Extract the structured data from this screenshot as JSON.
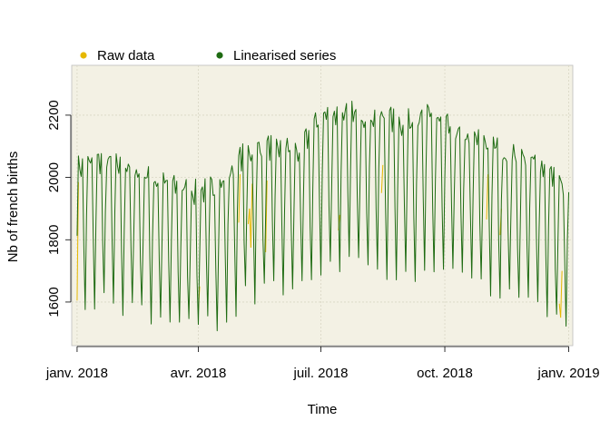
{
  "chart_data": {
    "type": "line",
    "title": "",
    "xlabel": "Time",
    "ylabel": "Nb of french births",
    "x_ticks": [
      {
        "date": "2018-01-01",
        "label": "janv. 2018"
      },
      {
        "date": "2018-04-01",
        "label": "avr. 2018"
      },
      {
        "date": "2018-07-01",
        "label": "juil. 2018"
      },
      {
        "date": "2018-10-01",
        "label": "oct. 2018"
      },
      {
        "date": "2019-01-01",
        "label": "janv. 2019"
      }
    ],
    "y_ticks": [
      1600,
      1800,
      2000,
      2200
    ],
    "xlim": [
      "2017-12-28",
      "2019-01-04"
    ],
    "ylim": [
      1460,
      2360
    ],
    "grid": true,
    "legend_position": "top",
    "colors": {
      "panel_background": "#f3f1e4",
      "grid": "#d8d6c4",
      "raw": "#e6b800",
      "linearised": "#1e6b12"
    },
    "series": [
      {
        "name": "Raw data",
        "color": "#e6b800",
        "points": [
          {
            "x": "2018-01-01",
            "y": 1605
          },
          {
            "x": "2018-01-02",
            "y": 1985
          },
          {
            "x": "2018-04-01",
            "y": 1570
          },
          {
            "x": "2018-04-02",
            "y": 1650
          },
          {
            "x": "2018-05-01",
            "y": 1855
          },
          {
            "x": "2018-05-02",
            "y": 2010
          },
          {
            "x": "2018-05-08",
            "y": 1850
          },
          {
            "x": "2018-05-09",
            "y": 1900
          },
          {
            "x": "2018-05-10",
            "y": 1775
          },
          {
            "x": "2018-05-11",
            "y": 1980
          },
          {
            "x": "2018-05-21",
            "y": 1760
          },
          {
            "x": "2018-05-22",
            "y": 1990
          },
          {
            "x": "2018-07-14",
            "y": 1830
          },
          {
            "x": "2018-07-15",
            "y": 1880
          },
          {
            "x": "2018-08-15",
            "y": 1950
          },
          {
            "x": "2018-08-16",
            "y": 2040
          },
          {
            "x": "2018-11-01",
            "y": 1865
          },
          {
            "x": "2018-11-02",
            "y": 2010
          },
          {
            "x": "2018-11-11",
            "y": 1815
          },
          {
            "x": "2018-11-12",
            "y": 1900
          },
          {
            "x": "2018-12-25",
            "y": 1595
          },
          {
            "x": "2018-12-26",
            "y": 1550
          },
          {
            "x": "2018-12-27",
            "y": 1700
          }
        ]
      },
      {
        "name": "Linearised series",
        "color": "#1e6b12",
        "weekly_profile": [
          0.97,
          1.07,
          1.07,
          1.06,
          1.07,
          0.93,
          0.83
        ],
        "monthly_level": [
          {
            "x": "2018-01-01",
            "y": 1905
          },
          {
            "x": "2018-01-20",
            "y": 1930
          },
          {
            "x": "2018-02-10",
            "y": 1895
          },
          {
            "x": "2018-03-10",
            "y": 1850
          },
          {
            "x": "2018-04-01",
            "y": 1830
          },
          {
            "x": "2018-04-20",
            "y": 1860
          },
          {
            "x": "2018-05-05",
            "y": 1950
          },
          {
            "x": "2018-05-25",
            "y": 1970
          },
          {
            "x": "2018-06-15",
            "y": 1955
          },
          {
            "x": "2018-07-01",
            "y": 2060
          },
          {
            "x": "2018-07-20",
            "y": 2070
          },
          {
            "x": "2018-08-10",
            "y": 2060
          },
          {
            "x": "2018-09-01",
            "y": 2040
          },
          {
            "x": "2018-09-20",
            "y": 2060
          },
          {
            "x": "2018-10-10",
            "y": 2010
          },
          {
            "x": "2018-11-01",
            "y": 1980
          },
          {
            "x": "2018-11-20",
            "y": 1940
          },
          {
            "x": "2018-12-10",
            "y": 1920
          },
          {
            "x": "2018-12-31",
            "y": 1830
          }
        ]
      }
    ]
  }
}
